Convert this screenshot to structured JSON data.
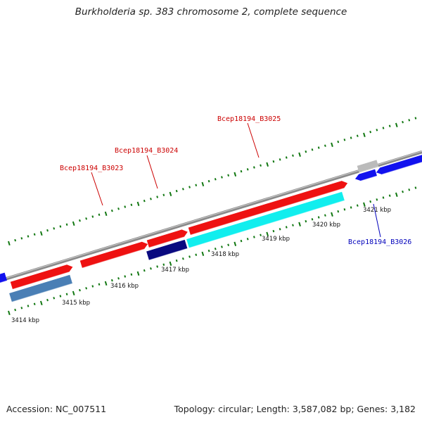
{
  "title": "Burkholderia sp. 383 chromosome 2, complete sequence",
  "footer": {
    "accession": "Accession: NC_007511",
    "summary": "Topology: circular; Length: 3,587,082 bp; Genes: 3,182"
  },
  "scale_labels": [
    "3414 kbp",
    "3415 kbp",
    "3416 kbp",
    "3417 kbp",
    "3418 kbp",
    "3419 kbp",
    "3420 kbp",
    "3421 kbp"
  ],
  "gene_labels": [
    {
      "text": "Bcep18194_B3023",
      "color": "#cc0000"
    },
    {
      "text": "Bcep18194_B3024",
      "color": "#cc0000"
    },
    {
      "text": "Bcep18194_B3025",
      "color": "#cc0000"
    },
    {
      "text": "Bcep18194_B3026",
      "color": "#0000bb"
    }
  ],
  "colors": {
    "backbone": "#888888",
    "forward_cds": "#ee1111",
    "reverse_cds": "#1111ee",
    "feature_steelblue": "#4a7fb5",
    "feature_navy": "#0a0a80",
    "feature_cyan": "#11eeee",
    "feature_gray": "#bbbbbb",
    "tick": "#117711"
  }
}
